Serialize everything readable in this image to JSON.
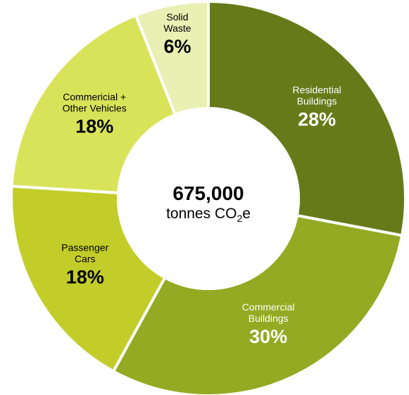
{
  "chart_data": {
    "type": "pie",
    "donut": true,
    "center": {
      "value": "675,000",
      "unit_prefix": "tonnes CO",
      "unit_sub": "2",
      "unit_suffix": "e"
    },
    "slices": [
      {
        "label_lines": [
          "Residential",
          "Buildings"
        ],
        "value": 28,
        "value_label": "28%",
        "color": "#667a19",
        "text_color": "#ffffff"
      },
      {
        "label_lines": [
          "Commercial",
          "Buildings"
        ],
        "value": 30,
        "value_label": "30%",
        "color": "#93aa22",
        "text_color": "#ffffff"
      },
      {
        "label_lines": [
          "Passenger",
          "Cars"
        ],
        "value": 18,
        "value_label": "18%",
        "color": "#c3cd29",
        "text_color": "#000000"
      },
      {
        "label_lines": [
          "Commericial +",
          "Other Vehicles"
        ],
        "value": 18,
        "value_label": "18%",
        "color": "#d9e359",
        "text_color": "#000000"
      },
      {
        "label_lines": [
          "Solid",
          "Waste"
        ],
        "value": 6,
        "value_label": "6%",
        "color": "#eaf0b4",
        "text_color": "#000000"
      }
    ]
  }
}
